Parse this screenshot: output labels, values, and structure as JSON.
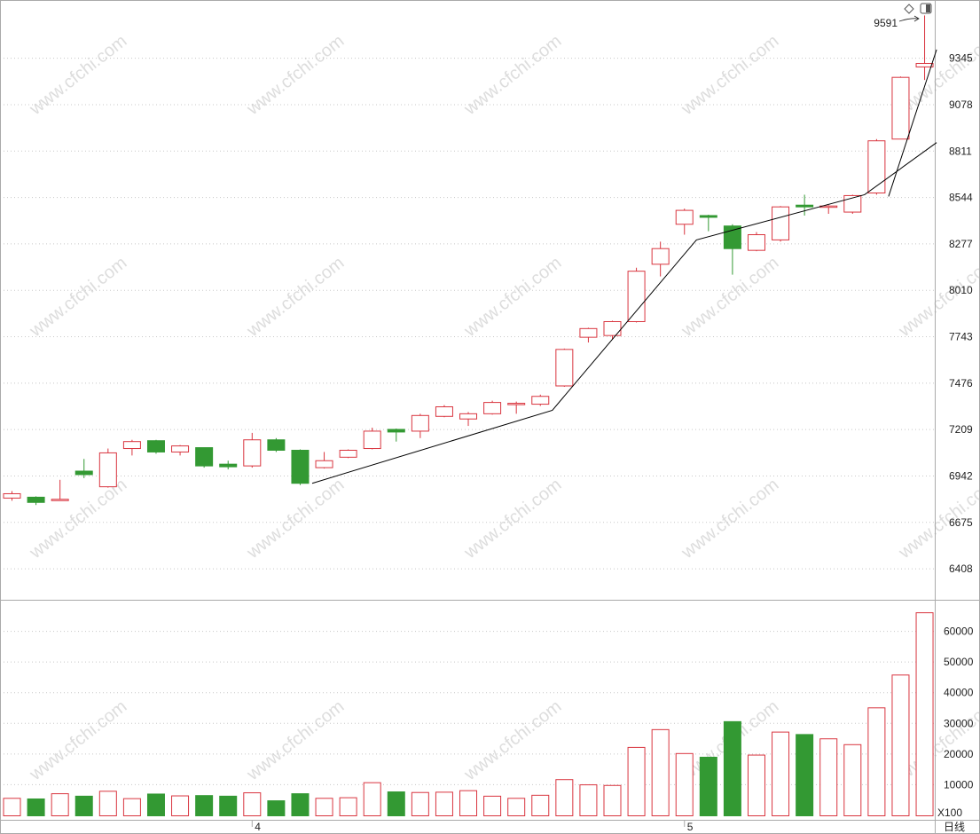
{
  "chart_data": {
    "type": "candlestick",
    "price_axis": {
      "ticks": [
        6408,
        6675,
        6942,
        7209,
        7476,
        7743,
        8010,
        8277,
        8544,
        8811,
        9078,
        9345
      ],
      "range": [
        6230,
        9680
      ]
    },
    "volume_axis": {
      "ticks": [
        10000,
        20000,
        30000,
        40000,
        50000,
        60000
      ],
      "range": [
        0,
        70000
      ],
      "unit_label": "X100"
    },
    "time_axis": {
      "labels": [
        {
          "index": 10.5,
          "text": "4"
        },
        {
          "index": 28.5,
          "text": "5"
        }
      ],
      "period_label": "日线"
    },
    "annotation": {
      "text": "9591",
      "value": 9591
    },
    "candles": [
      {
        "o": 6815,
        "c": 6840,
        "h": 6855,
        "l": 6800,
        "v": 5700
      },
      {
        "o": 6820,
        "c": 6790,
        "h": 6825,
        "l": 6775,
        "v": 5500
      },
      {
        "o": 6805,
        "c": 6808,
        "h": 6920,
        "l": 6800,
        "v": 7200
      },
      {
        "o": 6970,
        "c": 6950,
        "h": 7040,
        "l": 6930,
        "v": 6400
      },
      {
        "o": 6880,
        "c": 7075,
        "h": 7100,
        "l": 6875,
        "v": 8000
      },
      {
        "o": 7100,
        "c": 7140,
        "h": 7150,
        "l": 7060,
        "v": 5600
      },
      {
        "o": 7145,
        "c": 7080,
        "h": 7150,
        "l": 7070,
        "v": 7100
      },
      {
        "o": 7080,
        "c": 7115,
        "h": 7120,
        "l": 7060,
        "v": 6500
      },
      {
        "o": 7105,
        "c": 7000,
        "h": 7105,
        "l": 6990,
        "v": 6600
      },
      {
        "o": 7010,
        "c": 6995,
        "h": 7030,
        "l": 6980,
        "v": 6400
      },
      {
        "o": 7000,
        "c": 7150,
        "h": 7190,
        "l": 6990,
        "v": 7500
      },
      {
        "o": 7150,
        "c": 7090,
        "h": 7160,
        "l": 7080,
        "v": 4900
      },
      {
        "o": 7090,
        "c": 6900,
        "h": 7095,
        "l": 6890,
        "v": 7200
      },
      {
        "o": 6990,
        "c": 7030,
        "h": 7080,
        "l": 6985,
        "v": 5700
      },
      {
        "o": 7050,
        "c": 7090,
        "h": 7095,
        "l": 7045,
        "v": 5900
      },
      {
        "o": 7100,
        "c": 7200,
        "h": 7220,
        "l": 7095,
        "v": 10800
      },
      {
        "o": 7210,
        "c": 7195,
        "h": 7215,
        "l": 7140,
        "v": 7800
      },
      {
        "o": 7200,
        "c": 7290,
        "h": 7300,
        "l": 7160,
        "v": 7600
      },
      {
        "o": 7285,
        "c": 7340,
        "h": 7350,
        "l": 7280,
        "v": 7700
      },
      {
        "o": 7270,
        "c": 7300,
        "h": 7310,
        "l": 7230,
        "v": 8200
      },
      {
        "o": 7300,
        "c": 7365,
        "h": 7375,
        "l": 7295,
        "v": 6400
      },
      {
        "o": 7355,
        "c": 7360,
        "h": 7370,
        "l": 7300,
        "v": 5700
      },
      {
        "o": 7355,
        "c": 7400,
        "h": 7410,
        "l": 7345,
        "v": 6700
      },
      {
        "o": 7460,
        "c": 7670,
        "h": 7675,
        "l": 7455,
        "v": 11800
      },
      {
        "o": 7740,
        "c": 7790,
        "h": 7795,
        "l": 7710,
        "v": 10100
      },
      {
        "o": 7750,
        "c": 7830,
        "h": 7835,
        "l": 7730,
        "v": 9900
      },
      {
        "o": 7830,
        "c": 8120,
        "h": 8140,
        "l": 7825,
        "v": 22300
      },
      {
        "o": 8160,
        "c": 8250,
        "h": 8290,
        "l": 8090,
        "v": 28100
      },
      {
        "o": 8390,
        "c": 8470,
        "h": 8480,
        "l": 8330,
        "v": 20300
      },
      {
        "o": 8440,
        "c": 8430,
        "h": 8445,
        "l": 8350,
        "v": 19100
      },
      {
        "o": 8380,
        "c": 8250,
        "h": 8390,
        "l": 8100,
        "v": 30700
      },
      {
        "o": 8240,
        "c": 8330,
        "h": 8345,
        "l": 8235,
        "v": 19800
      },
      {
        "o": 8300,
        "c": 8490,
        "h": 8495,
        "l": 8290,
        "v": 27300
      },
      {
        "o": 8500,
        "c": 8490,
        "h": 8560,
        "l": 8440,
        "v": 26500
      },
      {
        "o": 8490,
        "c": 8495,
        "h": 8500,
        "l": 8450,
        "v": 25100
      },
      {
        "o": 8460,
        "c": 8555,
        "h": 8560,
        "l": 8450,
        "v": 23200
      },
      {
        "o": 8570,
        "c": 8870,
        "h": 8880,
        "l": 8560,
        "v": 35200
      },
      {
        "o": 8880,
        "c": 9235,
        "h": 9240,
        "l": 8880,
        "v": 45900
      },
      {
        "o": 9295,
        "c": 9315,
        "h": 9591,
        "l": 9220,
        "v": 66200
      }
    ],
    "trendlines": [
      {
        "points": [
          [
            12.5,
            6900
          ],
          [
            22.5,
            7320
          ],
          [
            28.5,
            8300
          ],
          [
            35.5,
            8560
          ],
          [
            38.5,
            8860
          ]
        ]
      },
      {
        "points": [
          [
            36.5,
            8550
          ],
          [
            38.5,
            9395
          ]
        ]
      }
    ],
    "colors": {
      "up": "#d9353f",
      "down": "#339933",
      "grid": "#c8c8c8",
      "axis": "#aaaaaa",
      "trendline": "#000000",
      "watermark": "#dddddd"
    }
  },
  "watermark": {
    "text": "www.cfchi.com"
  }
}
